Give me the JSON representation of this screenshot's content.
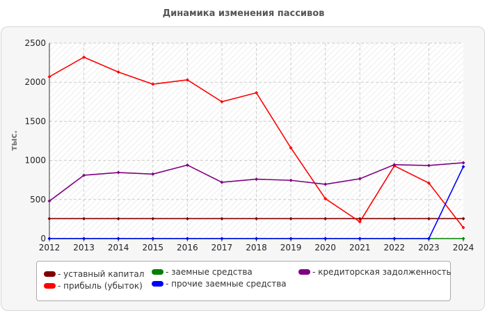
{
  "title": "Динамика изменения пассивов",
  "chart_data": {
    "type": "line",
    "title": "Динамика изменения пассивов",
    "xlabel": "",
    "ylabel": "тыс.",
    "x": [
      "2012",
      "2013",
      "2014",
      "2015",
      "2016",
      "2017",
      "2018",
      "2019",
      "2020",
      "2021",
      "2022",
      "2023",
      "2024"
    ],
    "y_ticks": [
      "0",
      "500",
      "1000",
      "1500",
      "2000",
      "2500"
    ],
    "ylim": [
      0,
      2500
    ],
    "grid": true,
    "legend_position": "bottom",
    "series": [
      {
        "name": "- уставный капитал",
        "color": "#800000",
        "values": [
          255,
          255,
          255,
          255,
          255,
          255,
          255,
          255,
          255,
          255,
          255,
          255,
          255
        ]
      },
      {
        "name": "- прибыль (убыток)",
        "color": "#ff0000",
        "values": [
          2070,
          2320,
          2130,
          1975,
          2030,
          1750,
          1865,
          1160,
          510,
          215,
          930,
          710,
          140
        ]
      },
      {
        "name": "- заемные средства",
        "color": "#008000",
        "values": [
          0,
          0,
          0,
          0,
          0,
          0,
          0,
          0,
          0,
          0,
          0,
          0,
          0
        ]
      },
      {
        "name": "- прочие заемные средства",
        "color": "#0000ff",
        "values": [
          0,
          0,
          0,
          0,
          0,
          0,
          0,
          0,
          0,
          0,
          0,
          0,
          920
        ]
      },
      {
        "name": "- кредиторская задолженность",
        "color": "#800080",
        "values": [
          480,
          810,
          845,
          825,
          940,
          720,
          760,
          745,
          695,
          765,
          945,
          935,
          970
        ]
      }
    ]
  }
}
